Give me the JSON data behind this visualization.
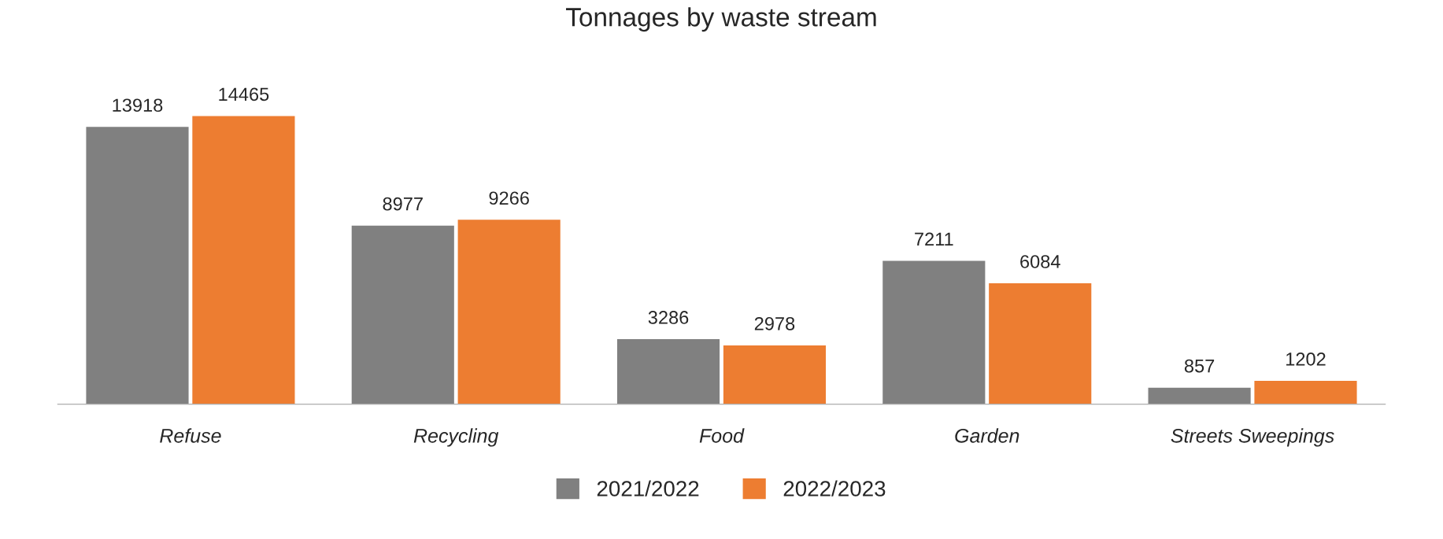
{
  "chart_data": {
    "type": "bar",
    "title": "Tonnages by waste stream",
    "categories": [
      "Refuse",
      "Recycling",
      "Food",
      "Garden",
      "Streets Sweepings"
    ],
    "series": [
      {
        "name": "2021/2022",
        "color": "#808080",
        "values": [
          13918,
          8977,
          3286,
          7211,
          857
        ]
      },
      {
        "name": "2022/2023",
        "color": "#ed7d31",
        "values": [
          14465,
          9266,
          2978,
          6084,
          1202
        ]
      }
    ],
    "data_labels": true,
    "legend": "bottom",
    "grid": false
  }
}
